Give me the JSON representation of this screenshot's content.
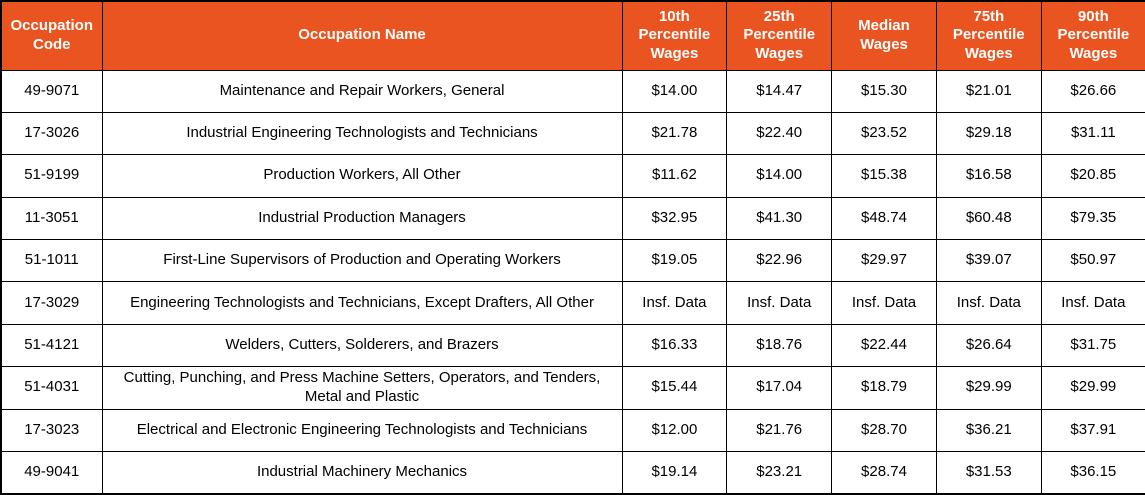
{
  "table": {
    "header_bg_color": "#E95420",
    "header_text_color": "#FFFFFF",
    "border_color": "#000000",
    "columns": [
      "Occupation Code",
      "Occupation Name",
      "10th Percentile Wages",
      "25th Percentile Wages",
      "Median Wages",
      "75th Percentile Wages",
      "90th Percentile Wages"
    ],
    "rows": [
      {
        "code": "49-9071",
        "name": "Maintenance and Repair Workers, General",
        "wages": [
          "$14.00",
          "$14.47",
          "$15.30",
          "$21.01",
          "$26.66"
        ]
      },
      {
        "code": "17-3026",
        "name": "Industrial Engineering Technologists and Technicians",
        "wages": [
          "$21.78",
          "$22.40",
          "$23.52",
          "$29.18",
          "$31.11"
        ]
      },
      {
        "code": "51-9199",
        "name": "Production Workers, All Other",
        "wages": [
          "$11.62",
          "$14.00",
          "$15.38",
          "$16.58",
          "$20.85"
        ]
      },
      {
        "code": "11-3051",
        "name": "Industrial Production Managers",
        "wages": [
          "$32.95",
          "$41.30",
          "$48.74",
          "$60.48",
          "$79.35"
        ]
      },
      {
        "code": "51-1011",
        "name": "First-Line Supervisors of Production and Operating Workers",
        "wages": [
          "$19.05",
          "$22.96",
          "$29.97",
          "$39.07",
          "$50.97"
        ]
      },
      {
        "code": "17-3029",
        "name": "Engineering Technologists and Technicians, Except Drafters, All Other",
        "wages": [
          "Insf. Data",
          "Insf. Data",
          "Insf. Data",
          "Insf. Data",
          "Insf. Data"
        ]
      },
      {
        "code": "51-4121",
        "name": "Welders, Cutters, Solderers, and Brazers",
        "wages": [
          "$16.33",
          "$18.76",
          "$22.44",
          "$26.64",
          "$31.75"
        ]
      },
      {
        "code": "51-4031",
        "name": "Cutting, Punching, and Press Machine Setters, Operators, and Tenders, Metal and Plastic",
        "wages": [
          "$15.44",
          "$17.04",
          "$18.79",
          "$29.99",
          "$29.99"
        ]
      },
      {
        "code": "17-3023",
        "name": "Electrical and Electronic Engineering Technologists and Technicians",
        "wages": [
          "$12.00",
          "$21.76",
          "$28.70",
          "$36.21",
          "$37.91"
        ]
      },
      {
        "code": "49-9041",
        "name": "Industrial Machinery Mechanics",
        "wages": [
          "$19.14",
          "$23.21",
          "$28.74",
          "$31.53",
          "$36.15"
        ]
      }
    ]
  }
}
